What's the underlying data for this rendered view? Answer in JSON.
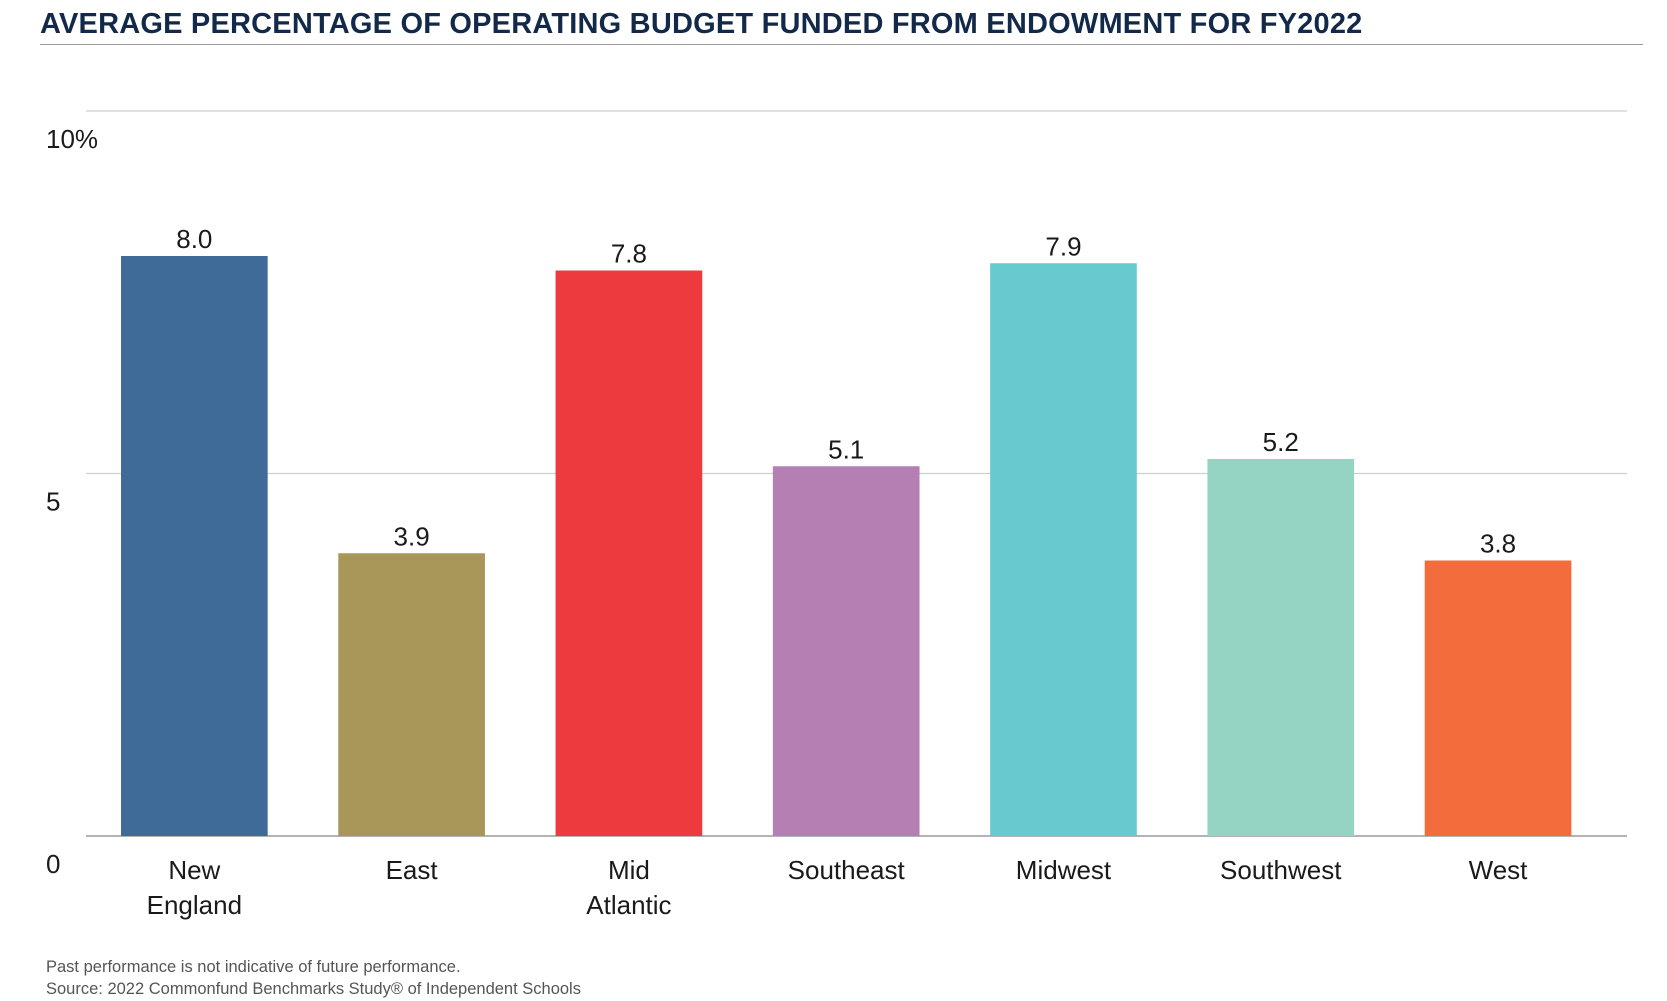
{
  "chart_data": {
    "type": "bar",
    "title": "AVERAGE PERCENTAGE OF OPERATING BUDGET FUNDED FROM ENDOWMENT FOR FY2022",
    "categories": [
      [
        "New",
        "England"
      ],
      [
        "East"
      ],
      [
        "Mid",
        "Atlantic"
      ],
      [
        "Southeast"
      ],
      [
        "Midwest"
      ],
      [
        "Southwest"
      ],
      [
        "West"
      ]
    ],
    "values": [
      8.0,
      3.9,
      7.8,
      5.1,
      7.9,
      5.2,
      3.8
    ],
    "value_labels": [
      "8.0",
      "3.9",
      "7.8",
      "5.1",
      "7.9",
      "5.2",
      "3.8"
    ],
    "colors": [
      "#3e6b98",
      "#a99759",
      "#ec3a3f",
      "#b47fb3",
      "#66cace",
      "#95d3c2",
      "#f26d3b"
    ],
    "ylim": [
      0,
      10
    ],
    "yticks": [
      {
        "value": 0,
        "label": "0"
      },
      {
        "value": 5,
        "label": "5"
      },
      {
        "value": 10,
        "label": "10%"
      }
    ],
    "grid": true,
    "xlabel": "",
    "ylabel": ""
  },
  "footnotes": {
    "disclaimer": "Past performance is not indicative of future performance.",
    "source": "Source: 2022 Commonfund Benchmarks Study® of Independent Schools"
  }
}
